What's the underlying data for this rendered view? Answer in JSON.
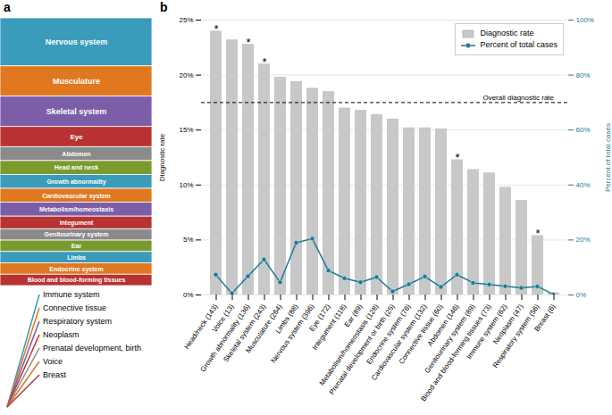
{
  "chart_data": [
    {
      "type": "stacked_bar",
      "title": "a",
      "stacked": true,
      "tick_labels": false,
      "categories": [
        "Nervous system",
        "Musculature",
        "Skeletal system",
        "Eye",
        "Abdomen",
        "Head and neck",
        "Growth abnormality",
        "Cardiovascular system",
        "Metabolism/homeostasis",
        "Integument",
        "Genitourinary system",
        "Ear",
        "Limbs",
        "Endocrine system",
        "Blood and blood-forming tissues"
      ],
      "values": [
        3.8,
        2.4,
        2.4,
        1.6,
        1.1,
        1.1,
        1.1,
        1.1,
        1.1,
        1.0,
        0.9,
        0.9,
        0.9,
        0.9,
        0.9
      ],
      "colors": [
        "#3a9bbb",
        "#e07820",
        "#7b5ea7",
        "#b83232",
        "#8a8a8a",
        "#7a9a2e",
        "#3a9bbb",
        "#e07820",
        "#7b5ea7",
        "#b83232",
        "#8a8a8a",
        "#7a9a2e",
        "#3a9bbb",
        "#e07820",
        "#b83232"
      ]
    },
    {
      "type": "bar",
      "title": "b",
      "categories": [
        "Head/neck (143)",
        "Voice (13)",
        "Growth abnormality (136)",
        "Skeletal system (243)",
        "Musculature (264)",
        "Limbs (88)",
        "Nervous system (396)",
        "Eye (172)",
        "Integument (118)",
        "Ear (89)",
        "Metabolism/homeostasis (128)",
        "Prenatal development or birth (25)",
        "Endocrine system (76)",
        "Cardiovascular system (132)",
        "Connective tissue (60)",
        "Abdomen (146)",
        "Genitourinary system (89)",
        "Blood and blood-forming tissues (73)",
        "Immune system (62)",
        "Neoplasm (47)",
        "Respiratory system (56)",
        "Breast (6)"
      ],
      "series": [
        {
          "name": "Diagnostic rate",
          "type": "bar",
          "color": "#c8c8c8",
          "values": [
            24.0,
            23.2,
            22.8,
            21.0,
            19.8,
            19.4,
            18.8,
            18.5,
            17.0,
            16.8,
            16.4,
            16.0,
            15.2,
            15.2,
            15.1,
            12.3,
            11.4,
            11.1,
            9.8,
            8.6,
            5.4,
            0.2
          ]
        },
        {
          "name": "Percent of total cases",
          "type": "line",
          "axis": "y2",
          "color": "#1b7a96",
          "marker": "circle",
          "values": [
            7.4,
            0.6,
            6.8,
            12.9,
            4.6,
            19.0,
            20.5,
            8.9,
            6.1,
            4.6,
            6.5,
            1.3,
            3.9,
            6.7,
            2.9,
            7.4,
            4.4,
            3.8,
            3.2,
            2.6,
            3.1,
            0.2
          ]
        }
      ],
      "ylabel": "Diagnostic rate",
      "y2label": "Percent of total cases",
      "ylim": [
        0,
        25
      ],
      "yticks": [
        {
          "value": 0,
          "label": "0%"
        },
        {
          "value": 5,
          "label": "5%"
        },
        {
          "value": 10,
          "label": "10%"
        },
        {
          "value": 15,
          "label": "15%"
        },
        {
          "value": 20,
          "label": "20%"
        },
        {
          "value": 25,
          "label": "25%"
        }
      ],
      "y2lim": [
        0,
        100
      ],
      "y2ticks": [
        {
          "value": 0,
          "label": "0%"
        },
        {
          "value": 20,
          "label": "20%"
        },
        {
          "value": 40,
          "label": "40%"
        },
        {
          "value": 60,
          "label": "60%"
        },
        {
          "value": 80,
          "label": "80%"
        },
        {
          "value": 100,
          "label": "100%"
        }
      ],
      "grid": true,
      "legend": "upper right",
      "reference_line": {
        "value": 17.5,
        "label": "Overall diagnostic rate",
        "line_style": "dashed"
      },
      "annotations": [
        {
          "text": "*",
          "category": "Head/neck (143)"
        },
        {
          "text": "*",
          "category": "Growth abnormality (136)"
        },
        {
          "text": "*",
          "category": "Skeletal system (243)"
        },
        {
          "text": "*",
          "category": "Abdomen (146)"
        },
        {
          "text": "*",
          "category": "Respiratory system (56)"
        }
      ],
      "color_key": [
        {
          "label": "Immune system",
          "color": "#3a9bbb"
        },
        {
          "label": "Connective tissue",
          "color": "#e07820"
        },
        {
          "label": "Respiratory system",
          "color": "#7b5ea7"
        },
        {
          "label": "Neoplasm",
          "color": "#b83232"
        },
        {
          "label": "Prenatal development, birth",
          "color": "#8a8a8a"
        },
        {
          "label": "Voice",
          "color": "#e07820"
        },
        {
          "label": "Breast",
          "color": "#b83232"
        }
      ]
    }
  ]
}
